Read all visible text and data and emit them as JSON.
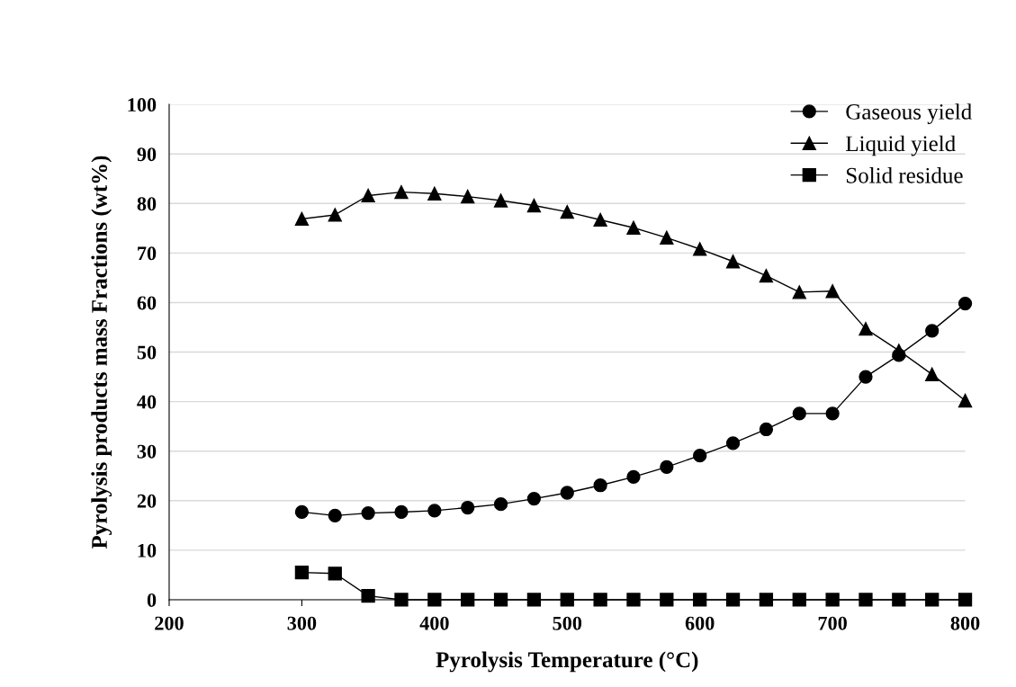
{
  "chart_data": {
    "type": "line",
    "xlabel": "Pyrolysis Temperature (°C)",
    "ylabel": "Pyrolysis products mass Fractions (wt%)",
    "x": [
      300,
      325,
      350,
      375,
      400,
      425,
      450,
      475,
      500,
      525,
      550,
      575,
      600,
      625,
      650,
      675,
      700,
      725,
      750,
      775,
      800
    ],
    "series": [
      {
        "name": "Gaseous yield",
        "color": "#000000",
        "marker": "circle",
        "values": [
          17.7,
          17.0,
          17.5,
          17.7,
          18.0,
          18.6,
          19.3,
          20.4,
          21.6,
          23.1,
          24.8,
          26.8,
          29.1,
          31.6,
          34.4,
          37.6,
          37.6,
          45.0,
          49.4,
          54.3,
          59.8
        ]
      },
      {
        "name": "Liquid yield",
        "color": "#000000",
        "marker": "triangle",
        "values": [
          76.9,
          77.7,
          81.6,
          82.3,
          82.0,
          81.4,
          80.6,
          79.6,
          78.3,
          76.7,
          75.1,
          73.1,
          70.8,
          68.3,
          65.4,
          62.1,
          62.3,
          54.7,
          50.3,
          45.5,
          40.2
        ]
      },
      {
        "name": "Solid residue",
        "color": "#000000",
        "marker": "square",
        "values": [
          5.5,
          5.3,
          0.8,
          0,
          0,
          0,
          0,
          0,
          0,
          0,
          0,
          0,
          0,
          0,
          0,
          0,
          0,
          0,
          0,
          0,
          0
        ]
      }
    ],
    "xlim": [
      200,
      800
    ],
    "xticks": [
      200,
      300,
      400,
      500,
      600,
      700,
      800
    ],
    "ylim": [
      0,
      100
    ],
    "yticks": [
      0,
      10,
      20,
      30,
      40,
      50,
      60,
      70,
      80,
      90,
      100
    ],
    "grid": "y",
    "legend": "top right",
    "line_style": "solid"
  }
}
